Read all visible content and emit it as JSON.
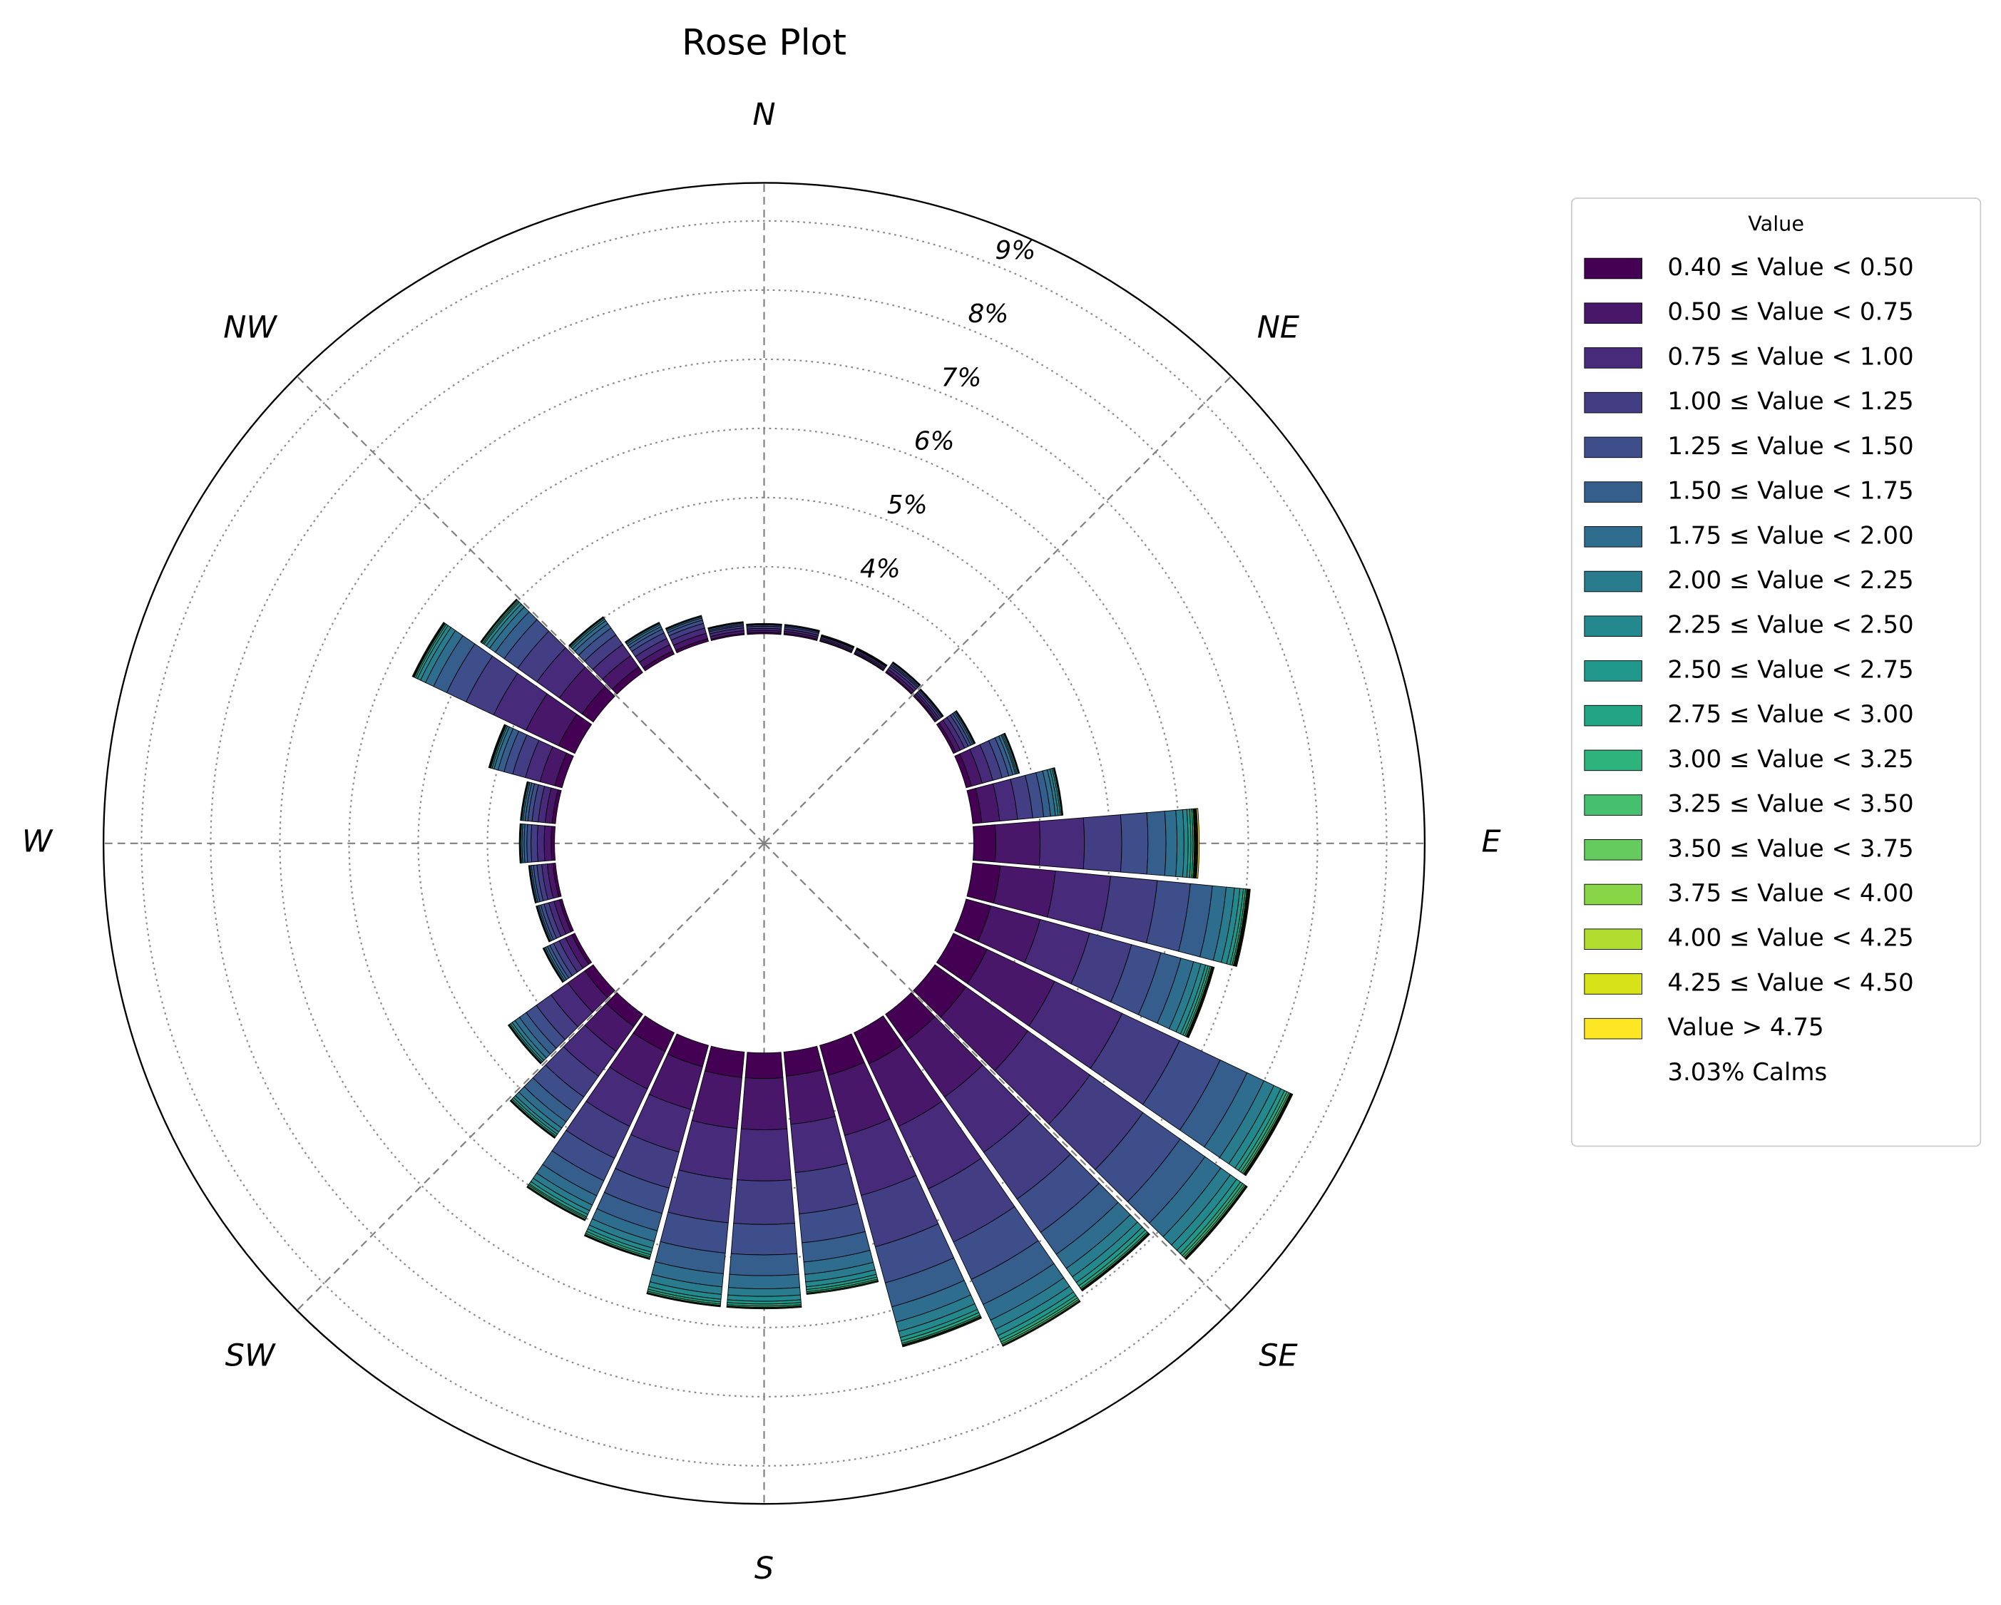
{
  "chart_data": {
    "type": "rose",
    "title": "Rose Plot",
    "legend_title": "Value",
    "compass": [
      {
        "angle": 0,
        "label": "N"
      },
      {
        "angle": 45,
        "label": "NE"
      },
      {
        "angle": 90,
        "label": "E"
      },
      {
        "angle": 135,
        "label": "SE"
      },
      {
        "angle": 180,
        "label": "S"
      },
      {
        "angle": 225,
        "label": "SW"
      },
      {
        "angle": 270,
        "label": "W"
      },
      {
        "angle": 315,
        "label": "NW"
      }
    ],
    "x": [
      0,
      10,
      20,
      30,
      40,
      50,
      60,
      70,
      80,
      90,
      100,
      110,
      120,
      130,
      140,
      150,
      160,
      170,
      180,
      190,
      200,
      210,
      220,
      230,
      240,
      250,
      260,
      270,
      280,
      290,
      300,
      310,
      320,
      330,
      340,
      350
    ],
    "rlim": [
      0,
      9.55
    ],
    "rticks": [
      {
        "value": 4,
        "label": "4%"
      },
      {
        "value": 5,
        "label": "5%"
      },
      {
        "value": 6,
        "label": "6%"
      },
      {
        "value": 7,
        "label": "7%"
      },
      {
        "value": 8,
        "label": "8%"
      },
      {
        "value": 9,
        "label": "9%"
      }
    ],
    "calms": 3.03,
    "calms_label": "3.03% Calms",
    "series": [
      {
        "name": "0.40 ≤ Value < 0.50",
        "color": "#440154",
        "values": [
          0.02,
          0.02,
          0.01,
          0.01,
          0.02,
          0.02,
          0.04,
          0.08,
          0.13,
          0.32,
          0.4,
          0.37,
          0.54,
          0.55,
          0.49,
          0.5,
          0.45,
          0.35,
          0.37,
          0.37,
          0.32,
          0.3,
          0.22,
          0.15,
          0.05,
          0.04,
          0.04,
          0.05,
          0.05,
          0.11,
          0.26,
          0.2,
          0.1,
          0.05,
          0.04,
          0.02
        ]
      },
      {
        "name": "0.50 ≤ Value < 0.75",
        "color": "#481769",
        "values": [
          0.03,
          0.03,
          0.02,
          0.02,
          0.04,
          0.03,
          0.07,
          0.16,
          0.26,
          0.64,
          0.8,
          0.74,
          1.08,
          1.1,
          0.98,
          1.0,
          0.9,
          0.7,
          0.74,
          0.74,
          0.64,
          0.6,
          0.44,
          0.3,
          0.1,
          0.08,
          0.08,
          0.1,
          0.1,
          0.22,
          0.52,
          0.4,
          0.2,
          0.1,
          0.08,
          0.04
        ]
      },
      {
        "name": "0.75 ≤ Value < 1.00",
        "color": "#472a7a",
        "values": [
          0.03,
          0.03,
          0.02,
          0.02,
          0.04,
          0.03,
          0.07,
          0.16,
          0.26,
          0.64,
          0.8,
          0.74,
          1.08,
          1.1,
          0.98,
          1.0,
          0.9,
          0.7,
          0.74,
          0.74,
          0.64,
          0.6,
          0.44,
          0.3,
          0.1,
          0.08,
          0.08,
          0.1,
          0.1,
          0.22,
          0.52,
          0.4,
          0.2,
          0.1,
          0.08,
          0.04
        ]
      },
      {
        "name": "1.00 ≤ Value < 1.25",
        "color": "#433d84",
        "values": [
          0.03,
          0.03,
          0.02,
          0.02,
          0.03,
          0.03,
          0.06,
          0.14,
          0.22,
          0.54,
          0.68,
          0.63,
          0.92,
          0.94,
          0.83,
          0.85,
          0.77,
          0.6,
          0.63,
          0.63,
          0.54,
          0.51,
          0.37,
          0.26,
          0.09,
          0.07,
          0.07,
          0.09,
          0.09,
          0.19,
          0.44,
          0.34,
          0.17,
          0.09,
          0.07,
          0.03
        ]
      },
      {
        "name": "1.25 ≤ Value < 1.50",
        "color": "#3d4e8a",
        "values": [
          0.02,
          0.02,
          0.01,
          0.01,
          0.02,
          0.02,
          0.04,
          0.1,
          0.16,
          0.38,
          0.48,
          0.44,
          0.65,
          0.66,
          0.59,
          0.6,
          0.54,
          0.42,
          0.44,
          0.44,
          0.38,
          0.36,
          0.26,
          0.18,
          0.06,
          0.05,
          0.05,
          0.06,
          0.06,
          0.13,
          0.31,
          0.24,
          0.12,
          0.06,
          0.05,
          0.02
        ]
      },
      {
        "name": "1.50 ≤ Value < 1.75",
        "color": "#355e8d",
        "values": [
          0.01,
          0.01,
          0.01,
          0.01,
          0.02,
          0.01,
          0.03,
          0.06,
          0.1,
          0.26,
          0.32,
          0.3,
          0.43,
          0.44,
          0.39,
          0.4,
          0.36,
          0.28,
          0.3,
          0.3,
          0.26,
          0.24,
          0.18,
          0.12,
          0.04,
          0.03,
          0.03,
          0.04,
          0.04,
          0.09,
          0.21,
          0.16,
          0.08,
          0.04,
          0.03,
          0.02
        ]
      },
      {
        "name": "1.75 ≤ Value < 2.00",
        "color": "#2e6d8e",
        "values": [
          0.01,
          0.01,
          0.01,
          0.01,
          0.01,
          0.01,
          0.02,
          0.04,
          0.07,
          0.16,
          0.2,
          0.19,
          0.27,
          0.28,
          0.25,
          0.25,
          0.23,
          0.18,
          0.19,
          0.19,
          0.16,
          0.15,
          0.11,
          0.08,
          0.03,
          0.02,
          0.02,
          0.03,
          0.03,
          0.06,
          0.13,
          0.1,
          0.05,
          0.03,
          0.02,
          0.01
        ]
      },
      {
        "name": "2.00 ≤ Value < 2.25",
        "color": "#297b8e",
        "values": [
          0,
          0,
          0,
          0,
          0.01,
          0,
          0.01,
          0.02,
          0.04,
          0.1,
          0.12,
          0.11,
          0.16,
          0.17,
          0.15,
          0.15,
          0.14,
          0.11,
          0.11,
          0.11,
          0.1,
          0.09,
          0.07,
          0.05,
          0.02,
          0.01,
          0.01,
          0.02,
          0.02,
          0.03,
          0.08,
          0.06,
          0.03,
          0.02,
          0.01,
          0.01
        ]
      },
      {
        "name": "2.25 ≤ Value < 2.50",
        "color": "#23898e",
        "values": [
          0,
          0,
          0,
          0,
          0,
          0,
          0.01,
          0.02,
          0.03,
          0.06,
          0.08,
          0.07,
          0.11,
          0.11,
          0.1,
          0.1,
          0.09,
          0.07,
          0.07,
          0.07,
          0.06,
          0.06,
          0.04,
          0.03,
          0.01,
          0.01,
          0.01,
          0.01,
          0.01,
          0.02,
          0.05,
          0.04,
          0.02,
          0.01,
          0.01,
          0
        ]
      },
      {
        "name": "2.50 ≤ Value < 2.75",
        "color": "#1f978b",
        "values": [
          0,
          0,
          0,
          0,
          0,
          0,
          0,
          0.01,
          0.02,
          0.04,
          0.05,
          0.04,
          0.06,
          0.07,
          0.06,
          0.06,
          0.05,
          0.04,
          0.04,
          0.04,
          0.04,
          0.04,
          0.03,
          0.02,
          0.01,
          0,
          0,
          0.01,
          0.01,
          0.01,
          0.03,
          0.02,
          0.01,
          0.01,
          0,
          0
        ]
      },
      {
        "name": "2.75 ≤ Value < 3.00",
        "color": "#21a585",
        "values": [
          0,
          0,
          0,
          0,
          0,
          0,
          0,
          0.01,
          0.01,
          0.03,
          0.03,
          0.03,
          0.04,
          0.04,
          0.04,
          0.04,
          0.04,
          0.03,
          0.03,
          0.03,
          0.03,
          0.02,
          0.02,
          0.01,
          0,
          0,
          0,
          0,
          0,
          0.01,
          0.02,
          0.02,
          0.01,
          0,
          0,
          0
        ]
      },
      {
        "name": "3.00 ≤ Value < 3.25",
        "color": "#2eb37c",
        "values": [
          0,
          0,
          0,
          0,
          0,
          0,
          0,
          0,
          0.01,
          0.02,
          0.02,
          0.02,
          0.03,
          0.03,
          0.02,
          0.03,
          0.02,
          0.02,
          0.02,
          0.02,
          0.02,
          0.02,
          0.01,
          0.01,
          0,
          0,
          0,
          0,
          0,
          0.01,
          0.01,
          0.01,
          0,
          0,
          0,
          0
        ]
      },
      {
        "name": "3.25 ≤ Value < 3.50",
        "color": "#46c06f",
        "values": [
          0,
          0,
          0,
          0,
          0,
          0,
          0,
          0,
          0,
          0.01,
          0.01,
          0.01,
          0.02,
          0.02,
          0.01,
          0.02,
          0.01,
          0.01,
          0.01,
          0.01,
          0.01,
          0.01,
          0.01,
          0,
          0,
          0,
          0,
          0,
          0,
          0,
          0.01,
          0.01,
          0,
          0,
          0,
          0
        ]
      },
      {
        "name": "3.50 ≤ Value < 3.75",
        "color": "#65cb5e",
        "values": [
          0,
          0,
          0,
          0,
          0,
          0,
          0,
          0,
          0,
          0.01,
          0.01,
          0.01,
          0.01,
          0.01,
          0.01,
          0.01,
          0.01,
          0.01,
          0.01,
          0.01,
          0.01,
          0.01,
          0,
          0,
          0,
          0,
          0,
          0,
          0,
          0,
          0.01,
          0,
          0,
          0,
          0,
          0
        ]
      },
      {
        "name": "3.75 ≤ Value < 4.00",
        "color": "#89d548",
        "values": [
          0,
          0,
          0,
          0,
          0,
          0,
          0,
          0,
          0,
          0.01,
          0.01,
          0.01,
          0.01,
          0.01,
          0.01,
          0.01,
          0.01,
          0,
          0,
          0,
          0,
          0,
          0,
          0,
          0,
          0,
          0,
          0,
          0,
          0,
          0,
          0,
          0,
          0,
          0,
          0
        ]
      },
      {
        "name": "4.00 ≤ Value < 4.25",
        "color": "#b0dd2f",
        "values": [
          0,
          0,
          0,
          0,
          0,
          0,
          0,
          0,
          0,
          0.01,
          0.01,
          0.01,
          0.01,
          0.01,
          0,
          0,
          0,
          0,
          0,
          0,
          0,
          0,
          0,
          0,
          0,
          0,
          0,
          0,
          0,
          0,
          0,
          0,
          0,
          0,
          0,
          0
        ]
      },
      {
        "name": "4.25 ≤ Value < 4.50",
        "color": "#d8e219",
        "values": [
          0,
          0,
          0,
          0,
          0,
          0,
          0,
          0,
          0,
          0.01,
          0.01,
          0,
          0.01,
          0,
          0,
          0,
          0,
          0,
          0,
          0,
          0,
          0,
          0,
          0,
          0,
          0,
          0,
          0,
          0,
          0,
          0,
          0,
          0,
          0,
          0,
          0
        ]
      },
      {
        "name": "Value > 4.75",
        "color": "#fde725",
        "values": [
          0,
          0,
          0,
          0,
          0,
          0,
          0,
          0,
          0,
          0.02,
          0,
          0,
          0,
          0,
          0,
          0,
          0,
          0,
          0,
          0,
          0,
          0,
          0,
          0,
          0,
          0,
          0,
          0,
          0,
          0,
          0,
          0,
          0,
          0,
          0,
          0
        ]
      }
    ]
  }
}
